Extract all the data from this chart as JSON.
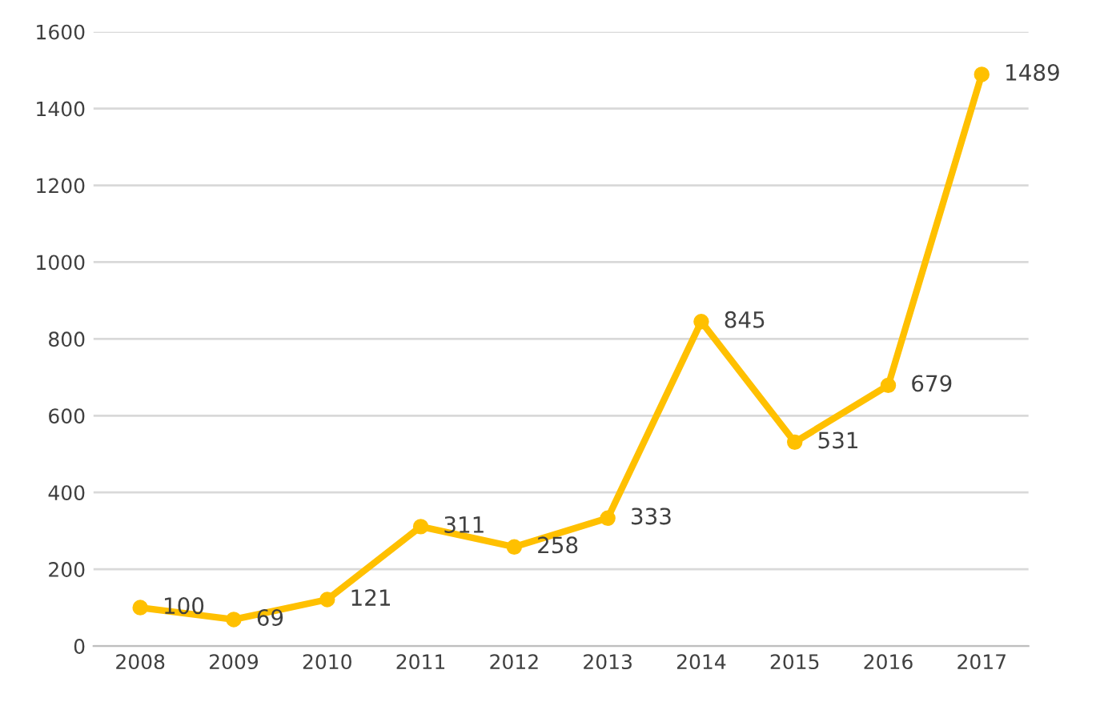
{
  "chart_data": {
    "type": "line",
    "categories": [
      "2008",
      "2009",
      "2010",
      "2011",
      "2012",
      "2013",
      "2014",
      "2015",
      "2016",
      "2017"
    ],
    "series": [
      {
        "color": "#ffc000",
        "values": [
          100,
          69,
          121,
          311,
          258,
          333,
          845,
          531,
          679,
          1489
        ]
      }
    ],
    "ylim": [
      0,
      1600
    ],
    "yticks": [
      0,
      200,
      400,
      600,
      800,
      1000,
      1200,
      1400,
      1600
    ],
    "grid": "y",
    "marker": "circle",
    "line_style": "solid",
    "data_labels": true
  }
}
